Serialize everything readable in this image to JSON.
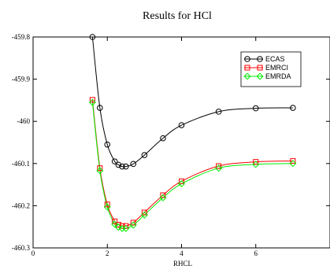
{
  "chart_data": {
    "type": "line",
    "title": "Results for HCl",
    "xlabel": "RHCL",
    "ylabel": "",
    "xlim": [
      0,
      8
    ],
    "ylim": [
      -460.3,
      -459.8
    ],
    "xticks": [
      0,
      2,
      4,
      6
    ],
    "yticks": [
      -459.8,
      -459.9,
      -460,
      -460.1,
      -460.2,
      -460.3
    ],
    "xtick_labels": [
      "0",
      "2",
      "4",
      "6"
    ],
    "ytick_labels": [
      "-459.8",
      "-459.9",
      "-460",
      "-460.1",
      "-460.2",
      "-460.3"
    ],
    "legend_position": "top-right",
    "grid": false,
    "series": [
      {
        "name": "ECAS",
        "color": "#000000",
        "marker": "circle",
        "x": [
          1.6,
          1.8,
          2.0,
          2.2,
          2.3,
          2.4,
          2.5,
          2.7,
          3.0,
          3.5,
          4.0,
          5.0,
          6.0,
          7.0
        ],
        "y": [
          -459.8,
          -459.968,
          -460.055,
          -460.095,
          -460.103,
          -460.107,
          -460.107,
          -460.101,
          -460.08,
          -460.04,
          -460.009,
          -459.977,
          -459.969,
          -459.968
        ]
      },
      {
        "name": "EMRCI",
        "color": "#ff0000",
        "marker": "square",
        "x": [
          1.6,
          1.8,
          2.0,
          2.2,
          2.3,
          2.4,
          2.5,
          2.7,
          3.0,
          3.5,
          4.0,
          5.0,
          6.0,
          7.0
        ],
        "y": [
          -459.949,
          -460.111,
          -460.197,
          -460.237,
          -460.245,
          -460.248,
          -460.248,
          -460.24,
          -460.216,
          -460.175,
          -460.142,
          -460.106,
          -460.096,
          -460.094
        ]
      },
      {
        "name": "EMRDA",
        "color": "#00ee00",
        "marker": "diamond",
        "x": [
          1.6,
          1.8,
          2.0,
          2.2,
          2.3,
          2.4,
          2.5,
          2.7,
          3.0,
          3.5,
          4.0,
          5.0,
          6.0,
          7.0
        ],
        "y": [
          -459.955,
          -460.117,
          -460.203,
          -460.244,
          -460.251,
          -460.254,
          -460.254,
          -460.246,
          -460.222,
          -460.181,
          -460.148,
          -460.111,
          -460.102,
          -460.1
        ]
      }
    ]
  }
}
